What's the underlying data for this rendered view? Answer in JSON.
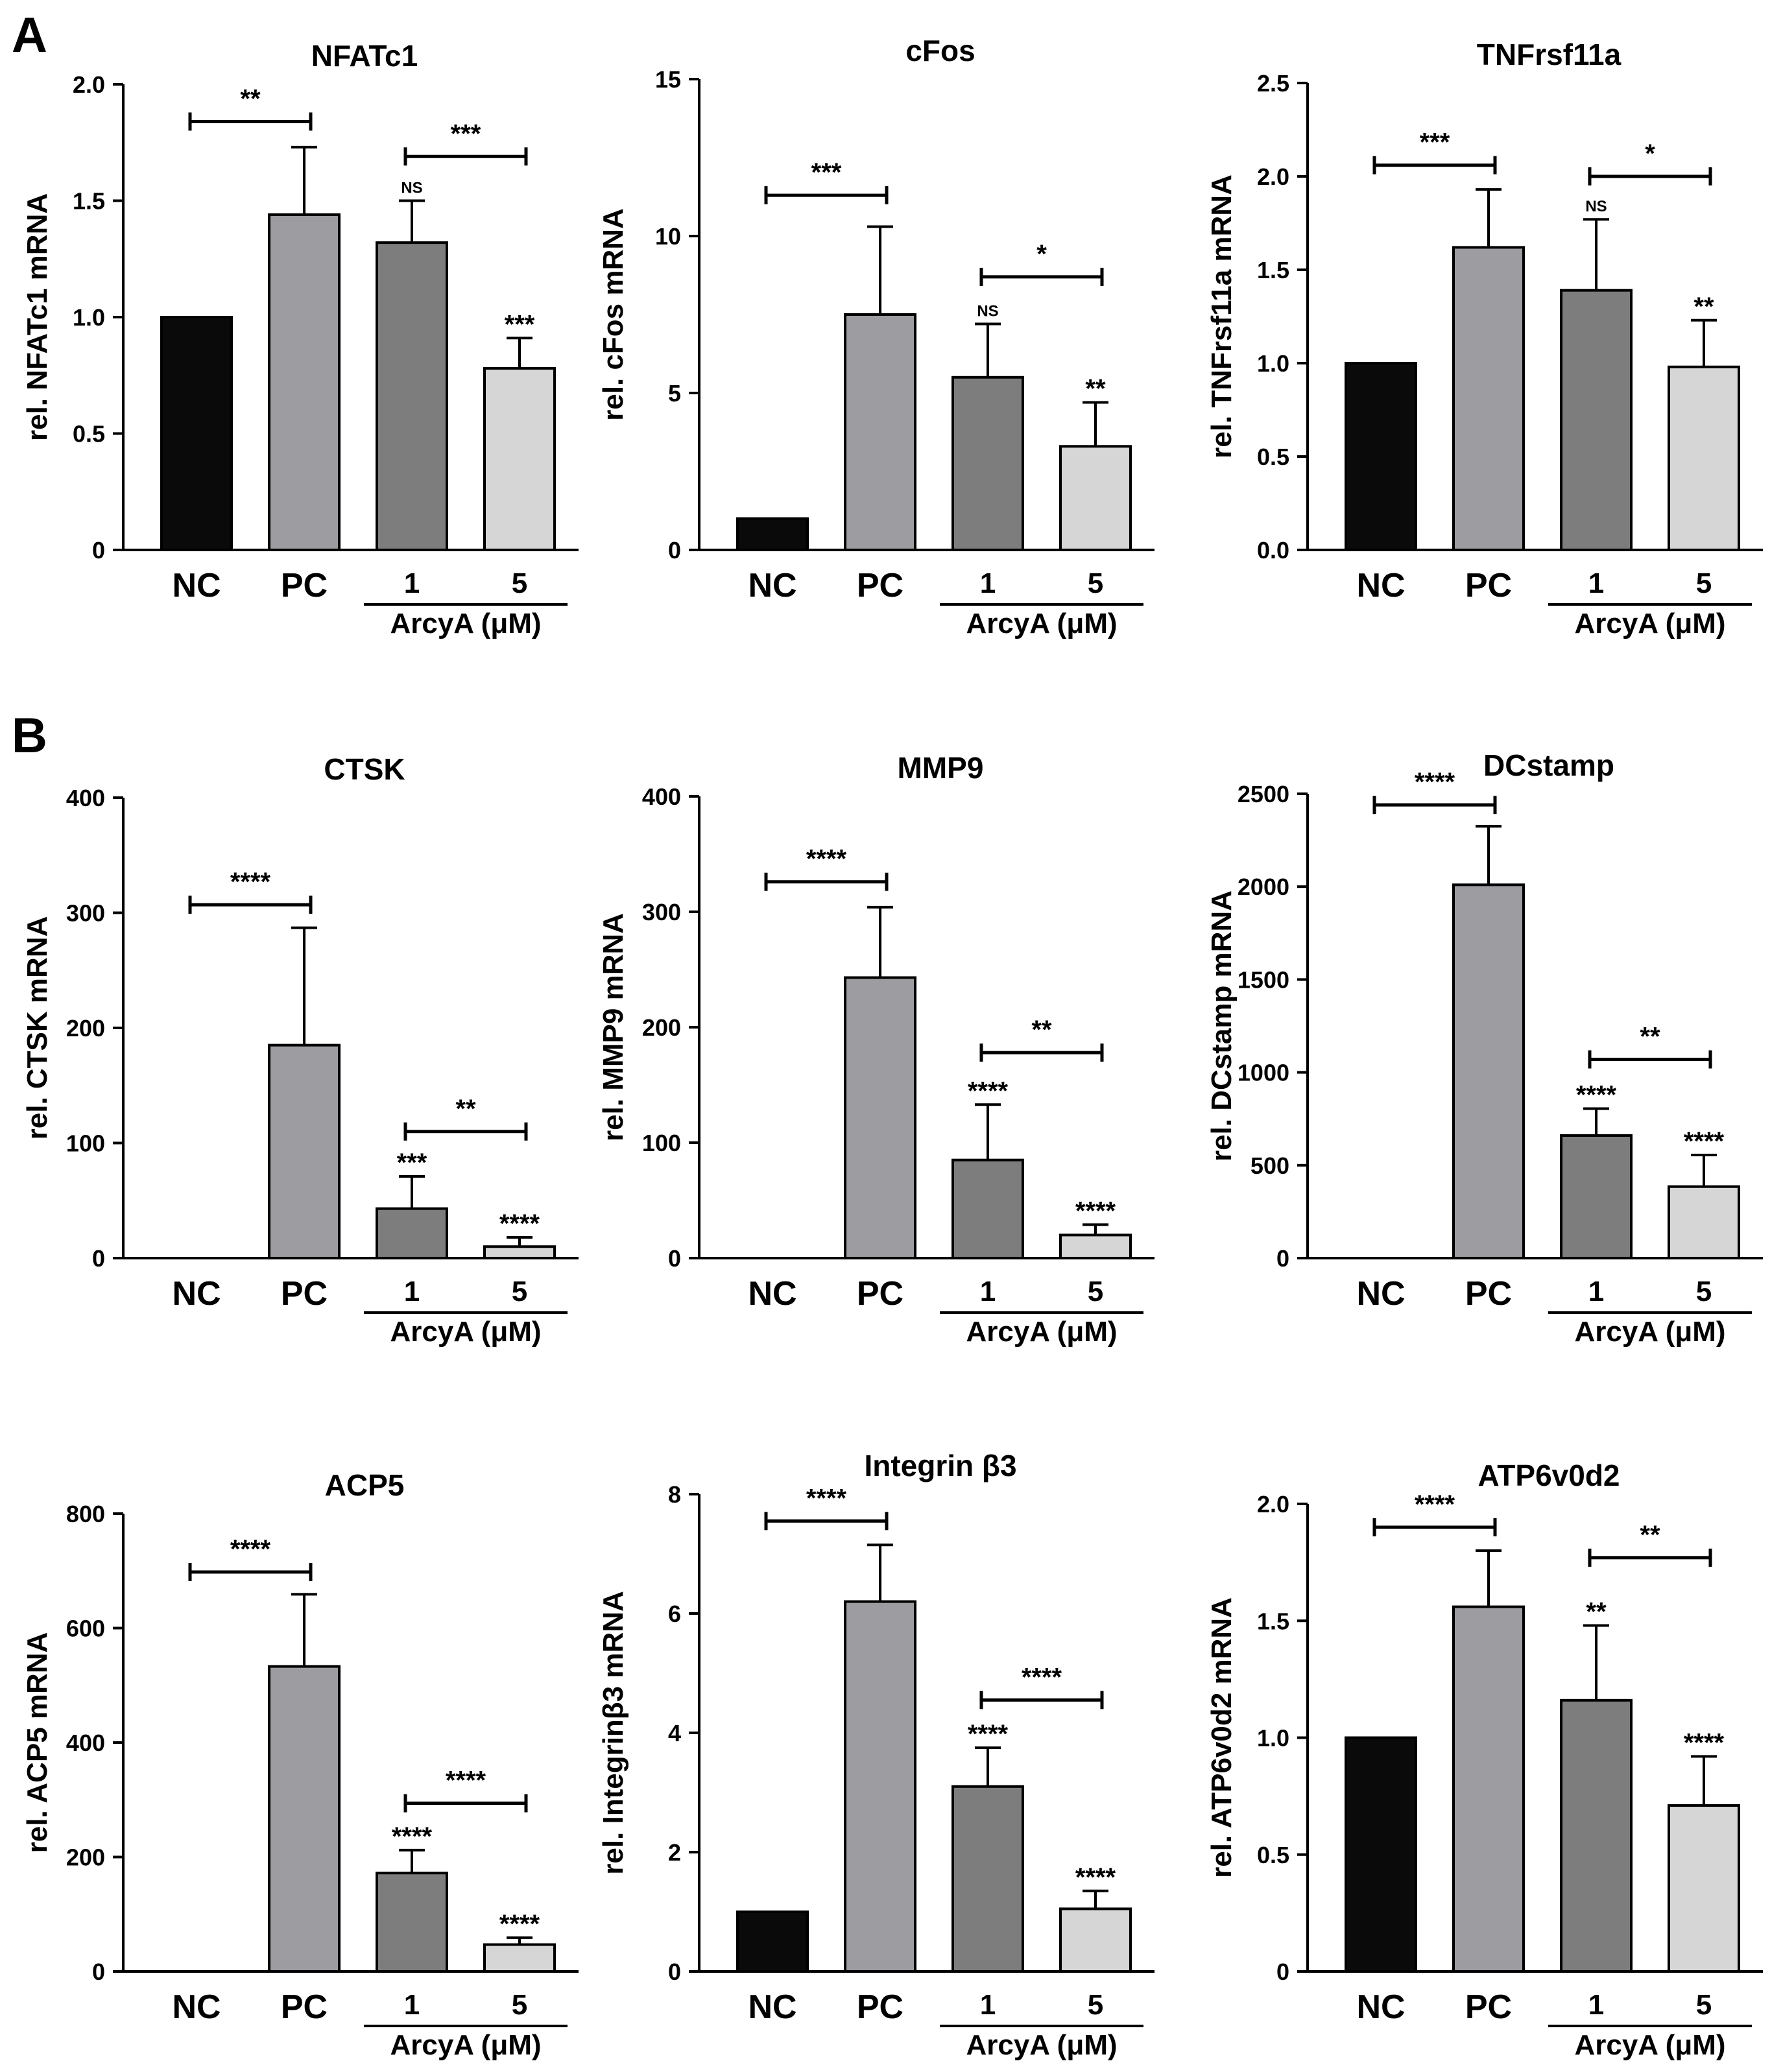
{
  "panel_labels": [
    "A",
    "B"
  ],
  "chart_data": [
    {
      "type": "bar",
      "panel": "A",
      "title": "NFATc1",
      "ylabel": "rel. NFATc1 mRNA",
      "ylim": [
        0,
        2.0
      ],
      "yticks": [
        0,
        0.5,
        1.0,
        1.5,
        2.0
      ],
      "ytick_labels": [
        "0",
        "0.5",
        "1.0",
        "1.5",
        "2.0"
      ],
      "categories": [
        "NC",
        "PC",
        "1",
        "5"
      ],
      "group_label": "ArcyA (μM)",
      "values": [
        1.0,
        1.44,
        1.32,
        0.78
      ],
      "errors": [
        0,
        0.29,
        0.18,
        0.13
      ],
      "colors": [
        "#0a0a0a",
        "#9c9ca1",
        "#7d7d7d",
        "#d6d6d6"
      ],
      "bar_labels": [
        "",
        "",
        "NS",
        "***"
      ],
      "brackets": [
        {
          "from": 0,
          "to": 1,
          "level": 1.84,
          "label": "**"
        },
        {
          "from": 2,
          "to": 3,
          "level": 1.69,
          "label": "***"
        }
      ]
    },
    {
      "type": "bar",
      "panel": "A",
      "title": "cFos",
      "ylabel": "rel. cFos mRNA",
      "ylim": [
        0,
        15
      ],
      "yticks": [
        0,
        5,
        10,
        15
      ],
      "ytick_labels": [
        "0",
        "5",
        "10",
        "15"
      ],
      "categories": [
        "NC",
        "PC",
        "1",
        "5"
      ],
      "group_label": "ArcyA (μM)",
      "values": [
        1.0,
        7.5,
        5.5,
        3.3
      ],
      "errors": [
        0,
        2.8,
        1.7,
        1.4
      ],
      "colors": [
        "#0a0a0a",
        "#9c9ca1",
        "#7d7d7d",
        "#d6d6d6"
      ],
      "bar_labels": [
        "",
        "",
        "NS",
        "**"
      ],
      "brackets": [
        {
          "from": 0,
          "to": 1,
          "level": 11.3,
          "label": "***"
        },
        {
          "from": 2,
          "to": 3,
          "level": 8.7,
          "label": "*"
        }
      ]
    },
    {
      "type": "bar",
      "panel": "A",
      "title": "TNFrsf11a",
      "ylabel": "rel. TNFrsf11a mRNA",
      "ylim": [
        0,
        2.5
      ],
      "yticks": [
        0,
        0.5,
        1.0,
        1.5,
        2.0,
        2.5
      ],
      "ytick_labels": [
        "0.0",
        "0.5",
        "1.0",
        "1.5",
        "2.0",
        "2.5"
      ],
      "categories": [
        "NC",
        "PC",
        "1",
        "5"
      ],
      "group_label": "ArcyA (μM)",
      "values": [
        1.0,
        1.62,
        1.39,
        0.98
      ],
      "errors": [
        0,
        0.31,
        0.38,
        0.25
      ],
      "colors": [
        "#0a0a0a",
        "#9c9ca1",
        "#7d7d7d",
        "#d6d6d6"
      ],
      "bar_labels": [
        "",
        "",
        "NS",
        "**"
      ],
      "brackets": [
        {
          "from": 0,
          "to": 1,
          "level": 2.06,
          "label": "***"
        },
        {
          "from": 2,
          "to": 3,
          "level": 2.0,
          "label": "*"
        }
      ]
    },
    {
      "type": "bar",
      "panel": "B",
      "title": "CTSK",
      "ylabel": "rel. CTSK mRNA",
      "ylim": [
        0,
        400
      ],
      "yticks": [
        0,
        100,
        200,
        300,
        400
      ],
      "ytick_labels": [
        "0",
        "100",
        "200",
        "300",
        "400"
      ],
      "categories": [
        "NC",
        "PC",
        "1",
        "5"
      ],
      "group_label": "ArcyA (μM)",
      "values": [
        0,
        185,
        43,
        10
      ],
      "errors": [
        0,
        102,
        28,
        8
      ],
      "colors": [
        "#0a0a0a",
        "#9c9ca1",
        "#7d7d7d",
        "#d6d6d6"
      ],
      "bar_labels": [
        "",
        "",
        "***",
        "****"
      ],
      "brackets": [
        {
          "from": 0,
          "to": 1,
          "level": 307,
          "label": "****"
        },
        {
          "from": 2,
          "to": 3,
          "level": 110,
          "label": "**"
        }
      ]
    },
    {
      "type": "bar",
      "panel": "B",
      "title": "MMP9",
      "ylabel": "rel. MMP9 mRNA",
      "ylim": [
        0,
        400
      ],
      "yticks": [
        0,
        100,
        200,
        300,
        400
      ],
      "ytick_labels": [
        "0",
        "100",
        "200",
        "300",
        "400"
      ],
      "categories": [
        "NC",
        "PC",
        "1",
        "5"
      ],
      "group_label": "ArcyA (μM)",
      "values": [
        0,
        243,
        85,
        20
      ],
      "errors": [
        0,
        61,
        48,
        9
      ],
      "colors": [
        "#0a0a0a",
        "#9c9ca1",
        "#7d7d7d",
        "#d6d6d6"
      ],
      "bar_labels": [
        "",
        "",
        "****",
        "****"
      ],
      "brackets": [
        {
          "from": 0,
          "to": 1,
          "level": 326,
          "label": "****"
        },
        {
          "from": 2,
          "to": 3,
          "level": 178,
          "label": "**"
        }
      ]
    },
    {
      "type": "bar",
      "panel": "B",
      "title": "DCstamp",
      "ylabel": "rel. DCstamp mRNA",
      "ylim": [
        0,
        2500
      ],
      "yticks": [
        0,
        500,
        1000,
        1500,
        2000,
        2500
      ],
      "ytick_labels": [
        "0",
        "500",
        "1000",
        "1500",
        "2000",
        "2500"
      ],
      "categories": [
        "NC",
        "PC",
        "1",
        "5"
      ],
      "group_label": "ArcyA (μM)",
      "values": [
        0,
        2010,
        660,
        385
      ],
      "errors": [
        0,
        315,
        145,
        170
      ],
      "colors": [
        "#0a0a0a",
        "#9c9ca1",
        "#7d7d7d",
        "#d6d6d6"
      ],
      "bar_labels": [
        "",
        "",
        "****",
        "****"
      ],
      "brackets": [
        {
          "from": 0,
          "to": 1,
          "level": 2440,
          "label": "****"
        },
        {
          "from": 2,
          "to": 3,
          "level": 1070,
          "label": "**"
        }
      ]
    },
    {
      "type": "bar",
      "panel": "B",
      "title": "ACP5",
      "ylabel": "rel. ACP5 mRNA",
      "ylim": [
        0,
        800
      ],
      "yticks": [
        0,
        200,
        400,
        600,
        800
      ],
      "ytick_labels": [
        "0",
        "200",
        "400",
        "600",
        "800"
      ],
      "categories": [
        "NC",
        "PC",
        "1",
        "5"
      ],
      "group_label": "ArcyA (μM)",
      "values": [
        0,
        533,
        172,
        47
      ],
      "errors": [
        0,
        126,
        40,
        12
      ],
      "colors": [
        "#0a0a0a",
        "#9c9ca1",
        "#7d7d7d",
        "#d6d6d6"
      ],
      "bar_labels": [
        "",
        "",
        "****",
        "****"
      ],
      "brackets": [
        {
          "from": 0,
          "to": 1,
          "level": 698,
          "label": "****"
        },
        {
          "from": 2,
          "to": 3,
          "level": 294,
          "label": "****"
        }
      ]
    },
    {
      "type": "bar",
      "panel": "B",
      "title": "Integrin β3",
      "ylabel": "rel. Integrinβ3 mRNA",
      "ylim": [
        0,
        8
      ],
      "yticks": [
        0,
        2,
        4,
        6,
        8
      ],
      "ytick_labels": [
        "0",
        "2",
        "4",
        "6",
        "8"
      ],
      "categories": [
        "NC",
        "PC",
        "1",
        "5"
      ],
      "group_label": "ArcyA (μM)",
      "values": [
        1.0,
        6.2,
        3.1,
        1.05
      ],
      "errors": [
        0,
        0.95,
        0.65,
        0.3
      ],
      "colors": [
        "#0a0a0a",
        "#9c9ca1",
        "#7d7d7d",
        "#d6d6d6"
      ],
      "bar_labels": [
        "",
        "",
        "****",
        "****"
      ],
      "brackets": [
        {
          "from": 0,
          "to": 1,
          "level": 7.55,
          "label": "****"
        },
        {
          "from": 2,
          "to": 3,
          "level": 4.55,
          "label": "****"
        }
      ]
    },
    {
      "type": "bar",
      "panel": "B",
      "title": "ATP6v0d2",
      "ylabel": "rel. ATP6v0d2 mRNA",
      "ylim": [
        0,
        2.0
      ],
      "yticks": [
        0,
        0.5,
        1.0,
        1.5,
        2.0
      ],
      "ytick_labels": [
        "0",
        "0.5",
        "1.0",
        "1.5",
        "2.0"
      ],
      "categories": [
        "NC",
        "PC",
        "1",
        "5"
      ],
      "group_label": "ArcyA (μM)",
      "values": [
        1.0,
        1.56,
        1.16,
        0.71
      ],
      "errors": [
        0,
        0.24,
        0.32,
        0.21
      ],
      "colors": [
        "#0a0a0a",
        "#9c9ca1",
        "#7d7d7d",
        "#d6d6d6"
      ],
      "bar_labels": [
        "",
        "",
        "**",
        "****"
      ],
      "brackets": [
        {
          "from": 0,
          "to": 1,
          "level": 1.9,
          "label": "****"
        },
        {
          "from": 2,
          "to": 3,
          "level": 1.77,
          "label": "**"
        }
      ]
    }
  ]
}
